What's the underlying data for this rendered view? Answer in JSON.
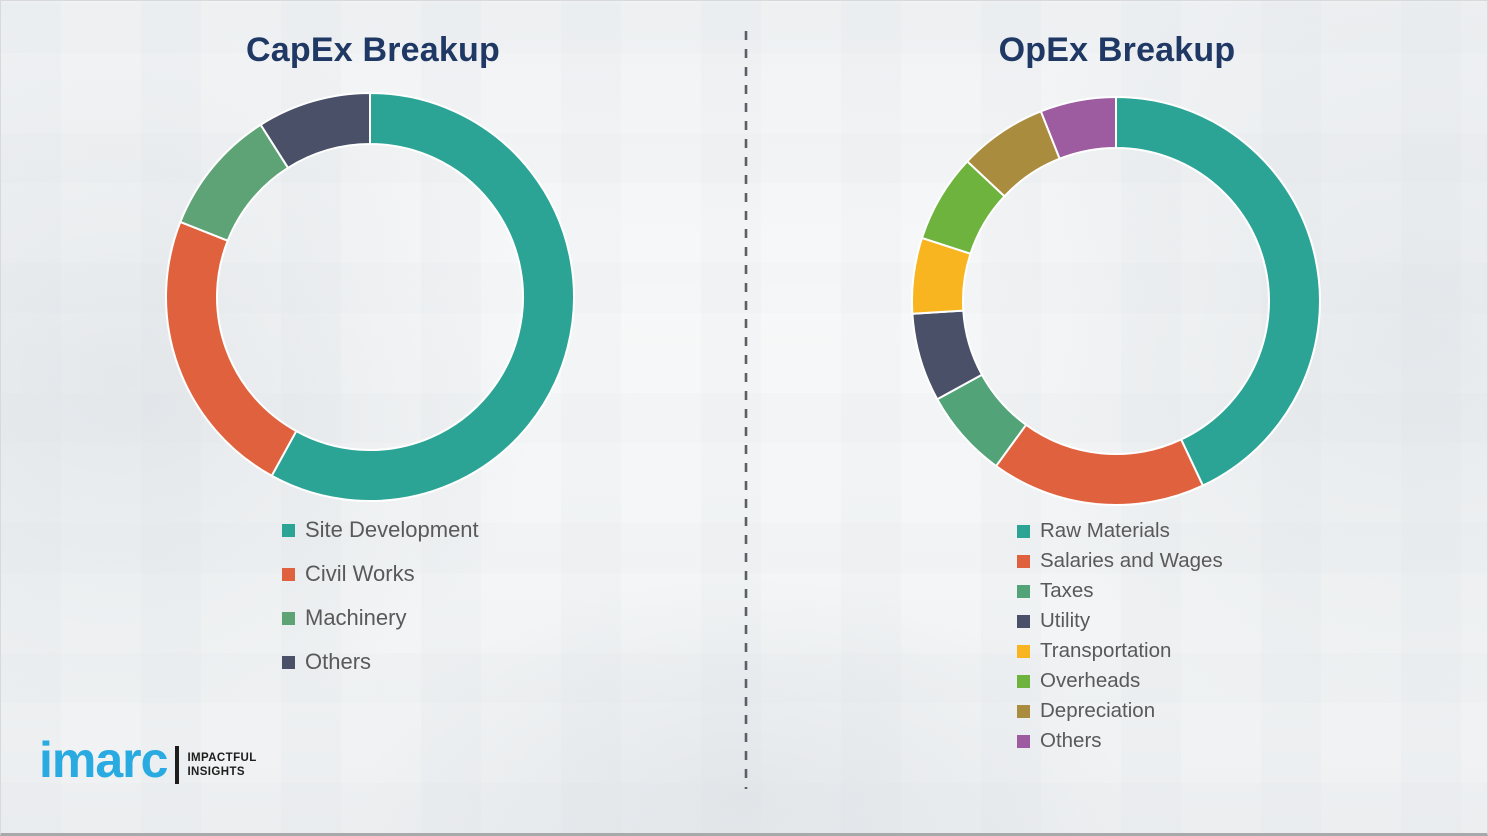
{
  "page": {
    "background_color": "#f3f5f6",
    "title_color": "#1f3864",
    "legend_text_color": "#595959",
    "divider_color": "#5c6066"
  },
  "chart_data": [
    {
      "type": "pie",
      "subtype": "donut",
      "title": "CapEx Breakup",
      "labels": [
        "Site Development",
        "Civil Works",
        "Machinery",
        "Others"
      ],
      "values": [
        58,
        23,
        10,
        9
      ],
      "colors": [
        "#2ba496",
        "#e0613d",
        "#5ea375",
        "#495068"
      ],
      "start_angle": 0,
      "direction": "clockwise",
      "inner_radius_pct": 75,
      "legend_position": "below-left",
      "data_labels": "none"
    },
    {
      "type": "pie",
      "subtype": "donut",
      "title": "OpEx Breakup",
      "labels": [
        "Raw Materials",
        "Salaries and Wages",
        "Taxes",
        "Utility",
        "Transportation",
        "Overheads",
        "Depreciation",
        "Others"
      ],
      "values": [
        43,
        17,
        7,
        7,
        6,
        7,
        7,
        6
      ],
      "colors": [
        "#2ba496",
        "#e0613d",
        "#52a377",
        "#495068",
        "#f8b51f",
        "#6db33d",
        "#aa8c3e",
        "#9d5c9f"
      ],
      "start_angle": 0,
      "direction": "clockwise",
      "inner_radius_pct": 75,
      "legend_position": "below-left",
      "data_labels": "none"
    }
  ],
  "logo": {
    "brand": "imarc",
    "brand_color": "#29abe2",
    "tagline_line1": "IMPACTFUL",
    "tagline_line2": "INSIGHTS"
  }
}
